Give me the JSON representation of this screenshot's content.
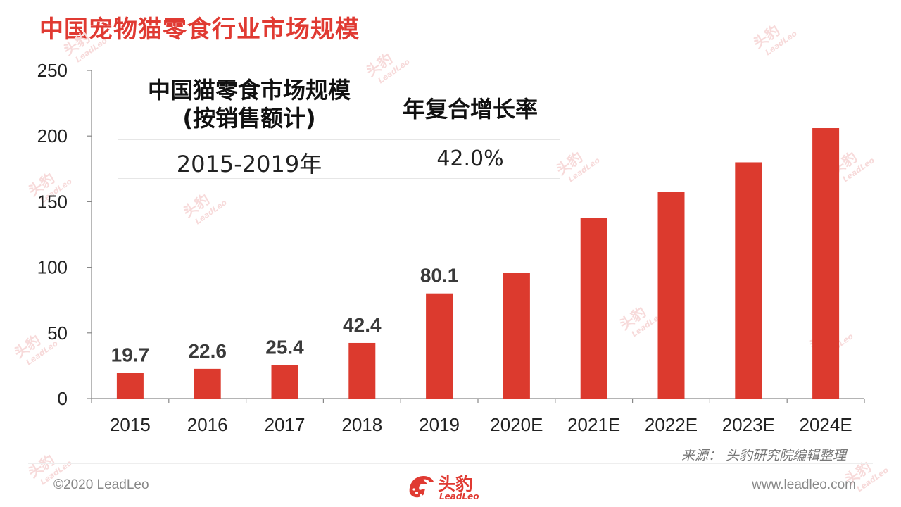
{
  "page_title": "中国宠物猫零食行业市场规模",
  "summary": {
    "header_line1": "中国猫零食市场规模",
    "header_line2": "(按销售额计)",
    "period_header": "年复合增长率",
    "period": "2015-2019年",
    "cagr": "42.0%"
  },
  "chart_data": {
    "type": "bar",
    "categories": [
      "2015",
      "2016",
      "2017",
      "2018",
      "2019",
      "2020E",
      "2021E",
      "2022E",
      "2023E",
      "2024E"
    ],
    "values": [
      19.7,
      22.6,
      25.4,
      42.4,
      80.1,
      96,
      137.5,
      157.5,
      180,
      206
    ],
    "data_labels": [
      "19.7",
      "22.6",
      "25.4",
      "42.4",
      "80.1",
      "",
      "",
      "",
      "",
      ""
    ],
    "ylim": [
      0,
      250
    ],
    "yticks": [
      0,
      50,
      100,
      150,
      200,
      250
    ],
    "bar_color": "#dc3a2e",
    "grid": false
  },
  "source": "来源： 头豹研究院编辑整理",
  "footer": {
    "copyright": "©2020 LeadLeo",
    "website": "www.leadleo.com",
    "logo_cn": "头豹",
    "logo_en": "LeadLeo"
  },
  "watermark": {
    "cn": "头豹",
    "en": "LeadLeo"
  },
  "colors": {
    "accent": "#e03a32",
    "bar": "#dc3a2e"
  }
}
